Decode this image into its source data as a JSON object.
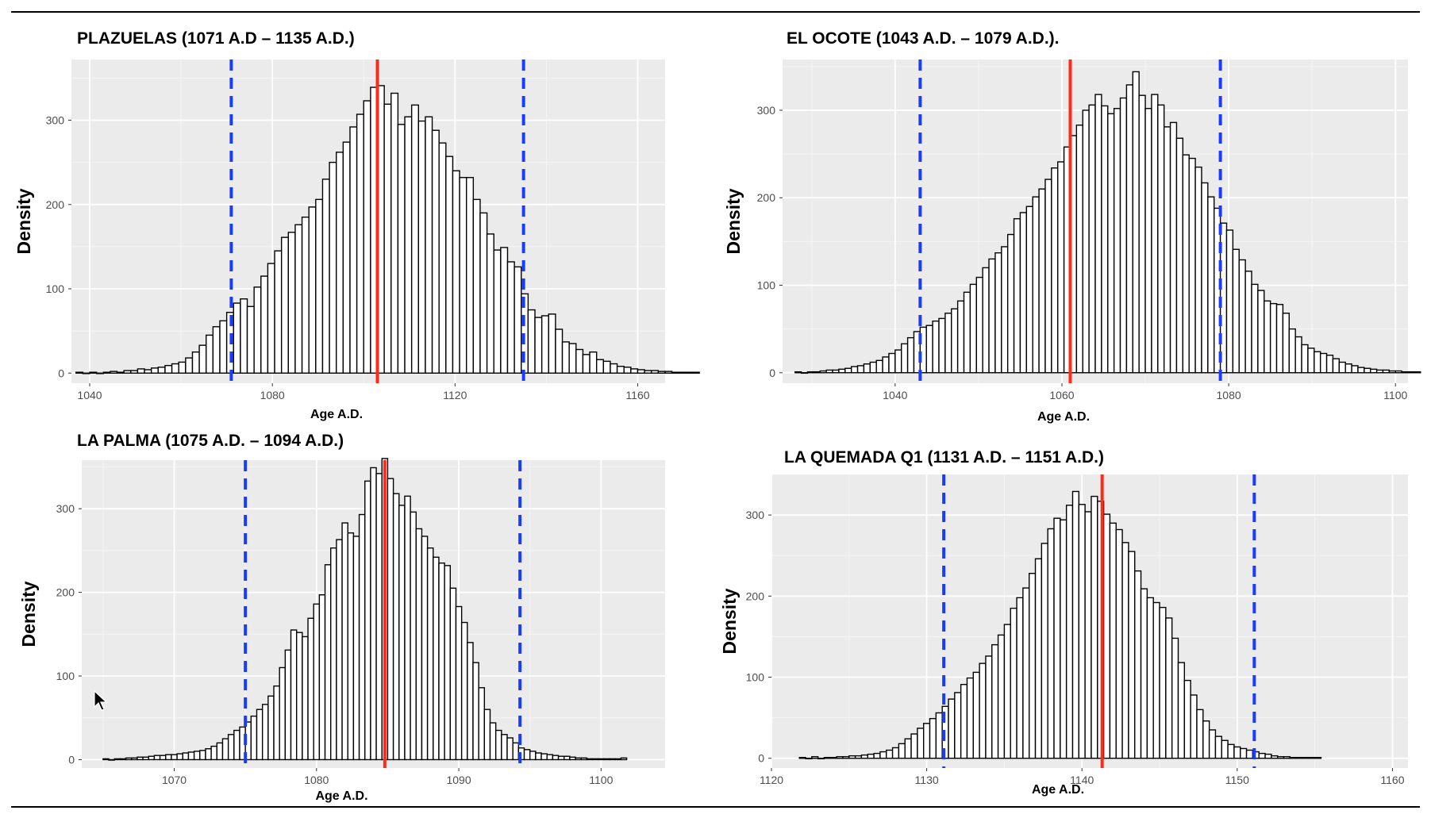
{
  "chart_data": [
    {
      "type": "bar",
      "title": "PLAZUELAS (1071 A.D – 1135 A.D.)",
      "xlabel": "Age A.D.",
      "ylabel": "Density",
      "xlim": [
        1036,
        1166
      ],
      "ylim": [
        -12,
        372
      ],
      "xticks": [
        1040,
        1080,
        1120,
        1160
      ],
      "yticks": [
        0,
        100,
        200,
        300
      ],
      "grid": true,
      "bin_start": 1037,
      "bin_width": 1.5,
      "values": [
        1,
        0,
        1,
        0,
        1,
        2,
        1,
        3,
        3,
        5,
        4,
        6,
        7,
        9,
        11,
        13,
        18,
        25,
        33,
        45,
        55,
        62,
        72,
        83,
        88,
        79,
        102,
        115,
        130,
        145,
        161,
        167,
        176,
        185,
        197,
        206,
        230,
        250,
        262,
        274,
        292,
        307,
        323,
        339,
        341,
        319,
        332,
        295,
        304,
        318,
        299,
        304,
        288,
        273,
        257,
        240,
        232,
        232,
        206,
        190,
        165,
        146,
        149,
        132,
        126,
        94,
        75,
        66,
        68,
        70,
        52,
        37,
        35,
        28,
        22,
        25,
        16,
        14,
        11,
        8,
        7,
        5,
        4,
        3,
        3,
        2,
        2,
        1,
        1,
        1,
        1
      ],
      "mean": 1103,
      "interval": [
        1071,
        1135
      ]
    },
    {
      "type": "bar",
      "title": "EL OCOTE (1043 A.D. – 1079 A.D.).",
      "xlabel": "Age A.D.",
      "ylabel": "Density",
      "xlim": [
        1026.5,
        1101.5
      ],
      "ylim": [
        -12,
        358
      ],
      "xticks": [
        1040,
        1060,
        1080,
        1100
      ],
      "yticks": [
        0,
        100,
        200,
        300
      ],
      "grid": true,
      "bin_start": 1028,
      "bin_width": 0.75,
      "values": [
        1,
        0,
        1,
        1,
        2,
        3,
        3,
        4,
        5,
        7,
        8,
        10,
        12,
        14,
        18,
        22,
        26,
        33,
        40,
        47,
        52,
        54,
        59,
        62,
        68,
        73,
        82,
        92,
        101,
        109,
        120,
        130,
        137,
        144,
        158,
        176,
        183,
        190,
        201,
        210,
        221,
        234,
        241,
        258,
        271,
        283,
        300,
        306,
        318,
        305,
        296,
        302,
        314,
        329,
        344,
        317,
        302,
        318,
        306,
        281,
        286,
        268,
        249,
        245,
        235,
        217,
        201,
        188,
        171,
        163,
        141,
        129,
        116,
        101,
        94,
        82,
        79,
        78,
        68,
        50,
        41,
        32,
        28,
        24,
        22,
        20,
        16,
        12,
        10,
        8,
        6,
        5,
        4,
        3,
        3,
        2,
        2,
        1,
        1,
        1
      ],
      "mean": 1061,
      "interval": [
        1043,
        1079
      ]
    },
    {
      "type": "bar",
      "title": "LA PALMA (1075 A.D. – 1094 A.D.)",
      "xlabel": "Age A.D.",
      "ylabel": "Density",
      "xlim": [
        1063.5,
        1104.5
      ],
      "ylim": [
        -10,
        358
      ],
      "xticks": [
        1070,
        1080,
        1090,
        1100
      ],
      "yticks": [
        0,
        100,
        200,
        300
      ],
      "grid": true,
      "bin_start": 1065,
      "bin_width": 0.4,
      "values": [
        1,
        0,
        1,
        1,
        2,
        2,
        3,
        3,
        4,
        5,
        5,
        6,
        6,
        7,
        8,
        9,
        10,
        11,
        13,
        16,
        20,
        25,
        30,
        35,
        39,
        45,
        52,
        60,
        66,
        76,
        88,
        110,
        131,
        155,
        152,
        147,
        169,
        186,
        197,
        233,
        253,
        263,
        283,
        271,
        267,
        293,
        333,
        349,
        342,
        360,
        336,
        318,
        304,
        315,
        296,
        276,
        267,
        253,
        242,
        235,
        232,
        205,
        183,
        164,
        140,
        116,
        86,
        60,
        44,
        35,
        30,
        26,
        20,
        14,
        12,
        10,
        8,
        7,
        6,
        5,
        4,
        4,
        3,
        2,
        2,
        1,
        1,
        1,
        1,
        1,
        1,
        2
      ],
      "mean": 1084.8,
      "interval": [
        1075,
        1094.3
      ]
    },
    {
      "type": "bar",
      "title": "LA QUEMADA Q1 (1131 A.D. – 1151 A.D.)",
      "xlabel": "Age A.D.",
      "ylabel": "Density",
      "xlim": [
        1120,
        1161
      ],
      "ylim": [
        -12,
        350
      ],
      "xticks": [
        1120,
        1130,
        1140,
        1150,
        1160
      ],
      "yticks": [
        0,
        100,
        200,
        300
      ],
      "grid": true,
      "bin_start": 1121.8,
      "bin_width": 0.4,
      "values": [
        1,
        0,
        2,
        0,
        1,
        1,
        2,
        2,
        3,
        3,
        4,
        5,
        6,
        8,
        10,
        13,
        18,
        24,
        30,
        37,
        43,
        49,
        56,
        64,
        73,
        81,
        91,
        99,
        106,
        117,
        126,
        140,
        152,
        165,
        185,
        198,
        210,
        228,
        246,
        265,
        283,
        296,
        294,
        312,
        329,
        313,
        304,
        323,
        317,
        301,
        290,
        282,
        266,
        255,
        231,
        209,
        198,
        192,
        186,
        173,
        148,
        118,
        96,
        78,
        60,
        46,
        35,
        27,
        22,
        17,
        14,
        12,
        10,
        8,
        6,
        5,
        3,
        2,
        2,
        1,
        1,
        1,
        1,
        1
      ],
      "mean": 1141.3,
      "interval": [
        1131.1,
        1151.1
      ]
    }
  ]
}
